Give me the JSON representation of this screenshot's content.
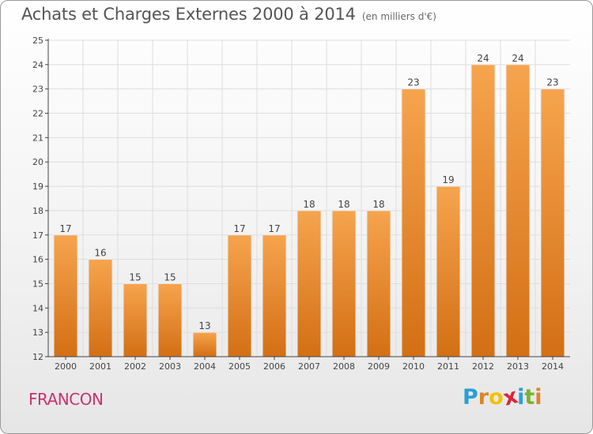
{
  "title": "Achats et Charges Externes 2000 à 2014",
  "subtitle": "(en milliers d'€)",
  "place_name": "FRANCON",
  "logo": {
    "letters": [
      "P",
      "r",
      "o",
      "x",
      "i",
      "t",
      "i"
    ],
    "colors": [
      "#2a9fd6",
      "#e0822a",
      "#f2c200",
      "#d9263b",
      "#2a9fd6",
      "#7ab32e",
      "#e0822a"
    ]
  },
  "colors": {
    "bar": "#f0903a",
    "bar_dark": "#d26e15",
    "grid": "#dddddd",
    "axis": "#444444"
  },
  "chart_data": {
    "type": "bar",
    "title": "Achats et Charges Externes 2000 à 2014",
    "subtitle": "(en milliers d'€)",
    "xlabel": "",
    "ylabel": "",
    "categories": [
      "2000",
      "2001",
      "2002",
      "2003",
      "2004",
      "2005",
      "2006",
      "2007",
      "2008",
      "2009",
      "2010",
      "2011",
      "2012",
      "2013",
      "2014"
    ],
    "values": [
      17,
      16,
      15,
      15,
      13,
      17,
      17,
      18,
      18,
      18,
      23,
      19,
      24,
      24,
      23
    ],
    "ylim": [
      12,
      25
    ],
    "yticks": [
      12,
      13,
      14,
      15,
      16,
      17,
      18,
      19,
      20,
      21,
      22,
      23,
      24,
      25
    ],
    "grid": true,
    "legend": "none"
  }
}
